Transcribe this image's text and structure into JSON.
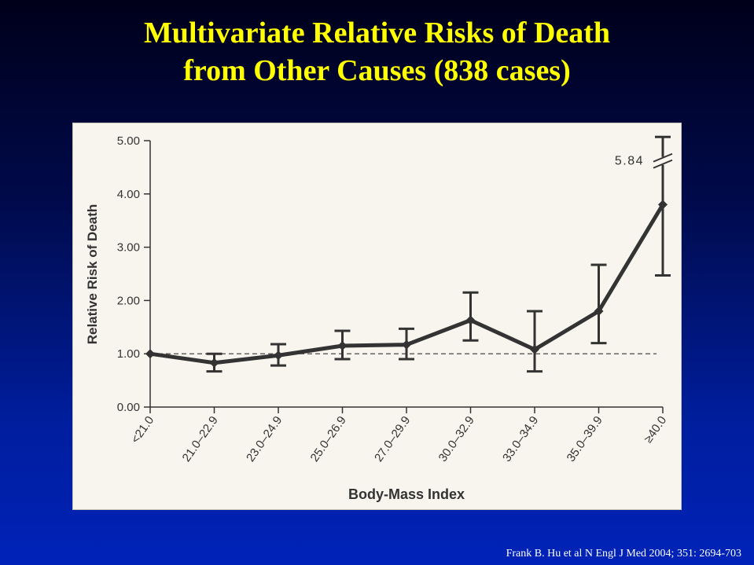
{
  "slide": {
    "title_line1": "Multivariate Relative Risks of Death",
    "title_line2": "from Other Causes (838 cases)",
    "citation": "Frank B. Hu et al N Engl J Med 2004; 351: 2694-703"
  },
  "colors": {
    "title": "#ffff00",
    "series": "#333333",
    "reference_line": "#333333",
    "panel_background": "#f7f5ee"
  },
  "chart_data": {
    "type": "line",
    "xlabel": "Body-Mass Index",
    "ylabel": "Relative Risk of Death",
    "categories": [
      "<21.0",
      "21.0–22.9",
      "23.0–24.9",
      "25.0–26.9",
      "27.0–29.9",
      "30.0–32.9",
      "33.0–34.9",
      "35.0–39.9",
      "≥40.0"
    ],
    "y_ticks": [
      "0.00",
      "1.00",
      "2.00",
      "3.00",
      "4.00",
      "5.00"
    ],
    "ylim": [
      0,
      5
    ],
    "series": [
      {
        "values": [
          1.0,
          0.83,
          0.97,
          1.15,
          1.17,
          1.63,
          1.08,
          1.8,
          3.8
        ],
        "ci_lower": [
          1.0,
          0.67,
          0.78,
          0.9,
          0.9,
          1.25,
          0.67,
          1.2,
          2.47
        ],
        "ci_upper": [
          1.0,
          1.0,
          1.18,
          1.43,
          1.47,
          2.15,
          1.8,
          2.67,
          5.84
        ]
      }
    ],
    "reference_line": 1.0,
    "annotations": [
      {
        "text": "5.84",
        "category": "≥40.0",
        "note": "upper limit beyond axis, axis break"
      }
    ],
    "grid": false
  }
}
